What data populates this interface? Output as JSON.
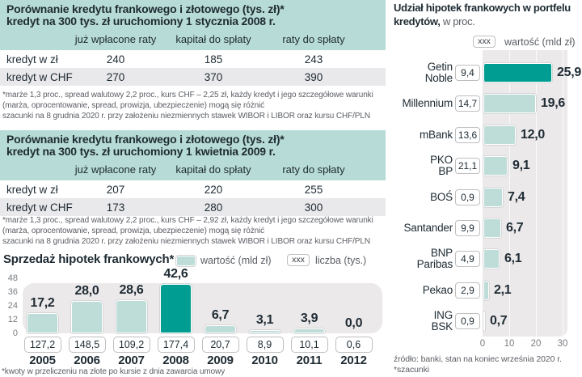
{
  "colors": {
    "accent_teal": "#009e92",
    "light_teal": "#bedcd8",
    "band_teal": "#b7dbd6",
    "row_alt_gray": "#e9e8ea",
    "plot_bg_gray": "#ece9eb",
    "text_dark": "#1e2b33",
    "text_gray": "#5a5d63"
  },
  "table1": {
    "title_line1": "Porównanie kredytu frankowego i złotowego (tys. zł)*",
    "title_line2": "kredyt na 300 tys. zł uruchomiony 1 stycznia 2008 r.",
    "columns": [
      "już wpłacone raty",
      "kapitał do spłaty",
      "raty do spłaty"
    ],
    "rows": [
      {
        "label": "kredyt w zł",
        "values": [
          "240",
          "185",
          "243"
        ]
      },
      {
        "label": "kredyt w CHF",
        "values": [
          "270",
          "370",
          "390"
        ]
      }
    ],
    "footnote_lines": [
      "*marże 1,3 proc., spread walutowy 2,2 proc., kurs CHF – 2,25 zł, każdy kredyt i jego szczegółowe warunki",
      "(marża, oprocentowanie, spread, prowizja, ubezpieczenie) mogą się różnić",
      "szacunki na 8 grudnia 2020 r. przy założeniu niezmiennych stawek WIBOR i LIBOR oraz kursu CHF/PLN"
    ]
  },
  "table2": {
    "title_line1": "Porównanie kredytu frankowego i złotowego (tys. zł)*",
    "title_line2": "kredyt na 300 tys. zł uruchomiony 1 kwietnia 2009 r.",
    "columns": [
      "już wpłacone raty",
      "kapitał do spłaty",
      "raty do spłaty"
    ],
    "rows": [
      {
        "label": "kredyt w zł",
        "values": [
          "207",
          "220",
          "255"
        ]
      },
      {
        "label": "kredyt w CHF",
        "values": [
          "173",
          "280",
          "300"
        ]
      }
    ],
    "footnote_lines": [
      "*marże 1,3 proc., spread walutowy 2,2 proc., kurs CHF – 2,92 zł, każdy kredyt i jego szczegółowe warunki",
      "(marża, oprocentowanie, spread, prowizja, ubezpieczenie) mogą się różnić",
      "szacunki na 8 grudnia 2020 r. przy założeniu niezmiennych stawek WIBOR i LIBOR oraz kursu CHF/PLN"
    ]
  },
  "sales_chart": {
    "title": "Sprzedaż hipotek frankowych*",
    "legend": {
      "value_label": "wartość (mld zł)",
      "count_box": "xxx",
      "count_label": "liczba (tys.)"
    },
    "y_ticks": [
      "48",
      "36",
      "24",
      "12",
      "0"
    ],
    "y_max": 48,
    "bars": [
      {
        "year": "2005",
        "value": "17,2",
        "count": "127,2",
        "v": 17.2
      },
      {
        "year": "2006",
        "value": "28,0",
        "count": "148,5",
        "v": 28.0
      },
      {
        "year": "2007",
        "value": "28,6",
        "count": "109,2",
        "v": 28.6
      },
      {
        "year": "2008",
        "value": "42,6",
        "count": "177,4",
        "v": 42.6,
        "highlight": true
      },
      {
        "year": "2009",
        "value": "6,7",
        "count": "20,7",
        "v": 6.7
      },
      {
        "year": "2010",
        "value": "3,1",
        "count": "8,9",
        "v": 3.1
      },
      {
        "year": "2011",
        "value": "3,9",
        "count": "10,1",
        "v": 3.9
      },
      {
        "year": "2012",
        "value": "0,0",
        "count": "0,6",
        "v": 0.0
      }
    ],
    "footnote": "*kwoty w przeliczeniu na złote po kursie z dnia zawarcia umowy"
  },
  "share_chart": {
    "title_bold_1": "Udział hipotek frankowych w portfelu",
    "title_bold_2": "kredytów,",
    "title_regular": " w proc.",
    "legend": {
      "box": "xxx",
      "label": "wartość (mld zł)"
    },
    "x_ticks": [
      "0",
      "10",
      "20",
      "30"
    ],
    "x_max": 30,
    "banks": [
      {
        "name": "Getin Noble",
        "name_lines": [
          "Getin",
          "Noble"
        ],
        "value_box": "9,4",
        "share": "25,9",
        "s": 25.9,
        "highlight": true
      },
      {
        "name": "Millennium",
        "name_lines": [
          "Millennium"
        ],
        "value_box": "14,7",
        "share": "19,6",
        "s": 19.6
      },
      {
        "name": "mBank",
        "name_lines": [
          "mBank"
        ],
        "value_box": "13,6",
        "share": "12,0",
        "s": 12.0
      },
      {
        "name": "PKO BP",
        "name_lines": [
          "PKO",
          "BP"
        ],
        "value_box": "21,1",
        "share": "9,1",
        "s": 9.1
      },
      {
        "name": "BOŚ",
        "name_lines": [
          "BOŚ"
        ],
        "value_box": "0,9",
        "share": "7,4",
        "s": 7.4
      },
      {
        "name": "Santander",
        "name_lines": [
          "Santander"
        ],
        "value_box": "9,9",
        "share": "6,7",
        "s": 6.7
      },
      {
        "name": "BNP Paribas",
        "name_lines": [
          "BNP",
          "Paribas"
        ],
        "value_box": "4,9",
        "share": "6,1",
        "s": 6.1
      },
      {
        "name": "Pekao",
        "name_lines": [
          "Pekao"
        ],
        "value_box": "2,9",
        "share": "2,1",
        "s": 2.1
      },
      {
        "name": "ING BSK",
        "name_lines": [
          "ING",
          "BSK"
        ],
        "value_box": "0,9",
        "share": "0,7",
        "s": 0.7
      }
    ],
    "source_lines": [
      "źródło: banki, stan na koniec września 2020 r.",
      "*szacunki"
    ]
  },
  "chart_data": [
    {
      "type": "table",
      "title": "Porównanie kredytu frankowego i złotowego (tys. zł), kredyt na 300 tys. zł uruchomiony 1 stycznia 2008 r.",
      "columns": [
        "",
        "już wpłacone raty",
        "kapitał do spłaty",
        "raty do spłaty"
      ],
      "rows": [
        [
          "kredyt w zł",
          240,
          185,
          243
        ],
        [
          "kredyt w CHF",
          270,
          370,
          390
        ]
      ]
    },
    {
      "type": "table",
      "title": "Porównanie kredytu frankowego i złotowego (tys. zł), kredyt na 300 tys. zł uruchomiony 1 kwietnia 2009 r.",
      "columns": [
        "",
        "już wpłacone raty",
        "kapitał do spłaty",
        "raty do spłaty"
      ],
      "rows": [
        [
          "kredyt w zł",
          207,
          220,
          255
        ],
        [
          "kredyt w CHF",
          173,
          280,
          300
        ]
      ]
    },
    {
      "type": "bar",
      "title": "Sprzedaż hipotek frankowych",
      "categories": [
        "2005",
        "2006",
        "2007",
        "2008",
        "2009",
        "2010",
        "2011",
        "2012"
      ],
      "series": [
        {
          "name": "wartość (mld zł)",
          "values": [
            17.2,
            28.0,
            28.6,
            42.6,
            6.7,
            3.1,
            3.9,
            0.0
          ]
        },
        {
          "name": "liczba (tys.)",
          "values": [
            127.2,
            148.5,
            109.2,
            177.4,
            20.7,
            8.9,
            10.1,
            0.6
          ]
        }
      ],
      "ylim": [
        0,
        48
      ],
      "y_ticks": [
        0,
        12,
        24,
        36,
        48
      ],
      "highlighted_category": "2008",
      "legend_position": "top"
    },
    {
      "type": "bar",
      "orientation": "horizontal",
      "title": "Udział hipotek frankowych w portfelu kredytów, w proc.",
      "categories": [
        "Getin Noble",
        "Millennium",
        "mBank",
        "PKO BP",
        "BOŚ",
        "Santander",
        "BNP Paribas",
        "Pekao",
        "ING BSK"
      ],
      "series": [
        {
          "name": "udział w portfelu (proc.)",
          "values": [
            25.9,
            19.6,
            12.0,
            9.1,
            7.4,
            6.7,
            6.1,
            2.1,
            0.7
          ]
        },
        {
          "name": "wartość (mld zł)",
          "values": [
            9.4,
            14.7,
            13.6,
            21.1,
            0.9,
            9.9,
            4.9,
            2.9,
            0.9
          ]
        }
      ],
      "xlim": [
        0,
        30
      ],
      "x_ticks": [
        0,
        10,
        20,
        30
      ],
      "highlighted_category": "Getin Noble"
    }
  ]
}
